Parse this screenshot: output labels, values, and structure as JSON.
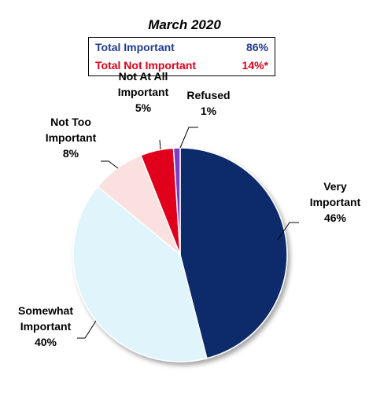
{
  "chart_data": {
    "type": "pie",
    "title": "March 2020",
    "summary": [
      {
        "label": "Total Important",
        "value": "86%",
        "color": "#1f3a93"
      },
      {
        "label": "Total Not Important",
        "value": "14%*",
        "color": "#e0001a"
      }
    ],
    "slices": [
      {
        "name": "Very Important",
        "label_lines": [
          "Very",
          "Important"
        ],
        "value": 46,
        "value_label": "46%",
        "color": "#0d2a6b"
      },
      {
        "name": "Somewhat Important",
        "label_lines": [
          "Somewhat",
          "Important"
        ],
        "value": 40,
        "value_label": "40%",
        "color": "#dff4fb"
      },
      {
        "name": "Not Too Important",
        "label_lines": [
          "Not Too",
          "Important"
        ],
        "value": 8,
        "value_label": "8%",
        "color": "#fbe0e0"
      },
      {
        "name": "Not At All Important",
        "label_lines": [
          "Not At All",
          "Important"
        ],
        "value": 5,
        "value_label": "5%",
        "color": "#e0001a"
      },
      {
        "name": "Refused",
        "label_lines": [
          "Refused"
        ],
        "value": 1,
        "value_label": "1%",
        "color": "#7a3cc4"
      }
    ]
  }
}
